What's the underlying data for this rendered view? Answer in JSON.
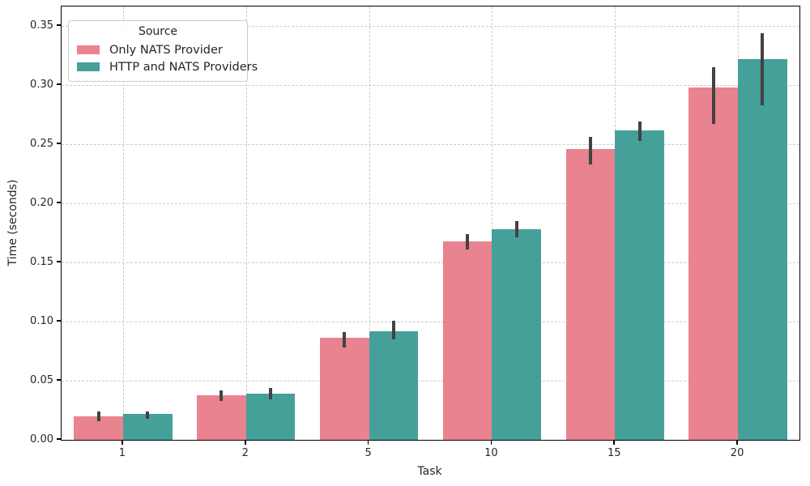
{
  "chart_data": {
    "type": "bar",
    "title": "",
    "xlabel": "Task",
    "ylabel": "Time (seconds)",
    "categories": [
      "1",
      "2",
      "5",
      "10",
      "15",
      "20"
    ],
    "series": [
      {
        "name": "Only NATS Provider",
        "color": "#e8838f",
        "values": [
          0.02,
          0.038,
          0.086,
          0.168,
          0.246,
          0.298
        ],
        "err_low": [
          0.016,
          0.033,
          0.078,
          0.161,
          0.233,
          0.267
        ],
        "err_high": [
          0.024,
          0.042,
          0.091,
          0.174,
          0.256,
          0.315
        ]
      },
      {
        "name": "HTTP and NATS Providers",
        "color": "#45a09a",
        "values": [
          0.022,
          0.039,
          0.092,
          0.178,
          0.262,
          0.322
        ],
        "err_low": [
          0.018,
          0.034,
          0.085,
          0.171,
          0.253,
          0.283
        ],
        "err_high": [
          0.024,
          0.044,
          0.101,
          0.185,
          0.269,
          0.344
        ]
      }
    ],
    "y_ticks": [
      0.0,
      0.05,
      0.1,
      0.15,
      0.2,
      0.25,
      0.3,
      0.35
    ],
    "ylim": [
      0,
      0.3665
    ],
    "legend_title": "Source",
    "legend_position": "upper-left",
    "grid": "dashed-both"
  },
  "colors": {
    "error_bar": "#424242",
    "grid": "#cccccc",
    "spine": "#000000",
    "text": "#262626",
    "background": "#ffffff"
  }
}
